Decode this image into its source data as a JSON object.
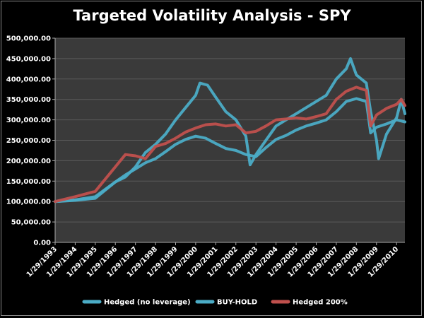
{
  "chart_data": {
    "type": "line",
    "title": "Targeted Volatility Analysis - SPY",
    "xlabel": "",
    "ylabel": "",
    "ylim": [
      0,
      500000
    ],
    "y_ticks": [
      0,
      50000,
      100000,
      150000,
      200000,
      250000,
      300000,
      350000,
      400000,
      450000,
      500000
    ],
    "y_tick_labels": [
      "0.00",
      "50,000.00",
      "100,000.00",
      "150,000.00",
      "200,000.00",
      "250,000.00",
      "300,000.00",
      "350,000.00",
      "400,000.00",
      "450,000.00",
      "500,000.00"
    ],
    "x_tick_labels": [
      "1/29/1993",
      "1/29/1994",
      "1/29/1995",
      "1/29/1996",
      "1/29/1997",
      "1/29/1998",
      "1/29/1999",
      "1/29/2000",
      "1/29/2001",
      "1/29/2002",
      "1/29/2003",
      "1/29/2004",
      "1/29/2005",
      "1/29/2006",
      "1/29/2007",
      "1/29/2008",
      "1/29/2009",
      "1/29/2010"
    ],
    "x_range": [
      "1/29/1993",
      "6/30/2010"
    ],
    "grid": true,
    "legend_position": "bottom",
    "plot_background": "#3a3a3a",
    "series": [
      {
        "name": "Hedged (no leverage)",
        "color": "#4bacc6",
        "x": [
          "1993-01-29",
          "1994-01-29",
          "1995-01-29",
          "1996-01-29",
          "1996-07-29",
          "1997-01-29",
          "1997-07-29",
          "1998-01-29",
          "1998-07-29",
          "1999-01-29",
          "1999-07-29",
          "2000-01-29",
          "2000-07-29",
          "2001-01-29",
          "2001-07-29",
          "2002-01-29",
          "2002-07-29",
          "2003-01-29",
          "2003-07-29",
          "2004-01-29",
          "2004-07-29",
          "2005-01-29",
          "2005-07-29",
          "2006-01-29",
          "2006-07-29",
          "2007-01-29",
          "2007-07-29",
          "2008-01-29",
          "2008-07-29",
          "2008-10-15",
          "2009-01-29",
          "2009-07-29",
          "2010-01-29",
          "2010-06-30"
        ],
        "values": [
          100000,
          104000,
          112000,
          148000,
          165000,
          180000,
          195000,
          205000,
          222000,
          240000,
          252000,
          260000,
          255000,
          242000,
          230000,
          225000,
          215000,
          210000,
          232000,
          252000,
          262000,
          275000,
          285000,
          292000,
          300000,
          320000,
          345000,
          352000,
          345000,
          268000,
          282000,
          290000,
          300000,
          295000
        ]
      },
      {
        "name": "BUY-HOLD",
        "color": "#4bacc6",
        "x": [
          "1993-01-29",
          "1994-01-29",
          "1995-01-29",
          "1996-01-29",
          "1996-07-29",
          "1997-01-29",
          "1997-07-29",
          "1998-01-29",
          "1998-07-29",
          "1999-01-29",
          "1999-07-29",
          "2000-01-29",
          "2000-04-15",
          "2000-09-01",
          "2001-01-29",
          "2001-07-29",
          "2002-01-29",
          "2002-07-29",
          "2002-10-15",
          "2003-01-29",
          "2003-07-29",
          "2004-01-29",
          "2004-07-29",
          "2005-01-29",
          "2005-07-29",
          "2006-01-29",
          "2006-07-29",
          "2007-01-29",
          "2007-07-29",
          "2007-10-15",
          "2008-01-29",
          "2008-07-29",
          "2008-10-15",
          "2009-01-29",
          "2009-03-09",
          "2009-07-29",
          "2010-01-29",
          "2010-04-25",
          "2010-06-30"
        ],
        "values": [
          100000,
          103000,
          108000,
          148000,
          160000,
          185000,
          220000,
          240000,
          265000,
          300000,
          330000,
          360000,
          390000,
          385000,
          355000,
          320000,
          300000,
          260000,
          190000,
          215000,
          250000,
          285000,
          300000,
          315000,
          330000,
          345000,
          360000,
          400000,
          425000,
          450000,
          410000,
          390000,
          320000,
          250000,
          205000,
          265000,
          305000,
          350000,
          315000
        ]
      },
      {
        "name": "Hedged 200%",
        "color": "#c0504d",
        "x": [
          "1993-01-29",
          "1994-01-29",
          "1995-01-29",
          "1996-01-29",
          "1996-07-29",
          "1997-01-29",
          "1997-07-29",
          "1998-01-29",
          "1998-07-29",
          "1999-01-29",
          "1999-07-29",
          "2000-01-29",
          "2000-07-29",
          "2001-01-29",
          "2001-07-29",
          "2002-01-29",
          "2002-07-29",
          "2003-01-29",
          "2003-07-29",
          "2004-01-29",
          "2004-07-29",
          "2005-01-29",
          "2005-07-29",
          "2006-01-29",
          "2006-07-29",
          "2007-01-29",
          "2007-07-29",
          "2008-01-29",
          "2008-07-29",
          "2008-10-15",
          "2009-01-29",
          "2009-07-29",
          "2010-01-29",
          "2010-04-25",
          "2010-06-30"
        ],
        "values": [
          100000,
          112000,
          125000,
          185000,
          215000,
          212000,
          205000,
          235000,
          242000,
          255000,
          270000,
          280000,
          288000,
          290000,
          285000,
          288000,
          268000,
          272000,
          285000,
          300000,
          302000,
          305000,
          302000,
          308000,
          315000,
          350000,
          370000,
          380000,
          372000,
          285000,
          312000,
          328000,
          338000,
          350000,
          335000
        ]
      }
    ]
  }
}
